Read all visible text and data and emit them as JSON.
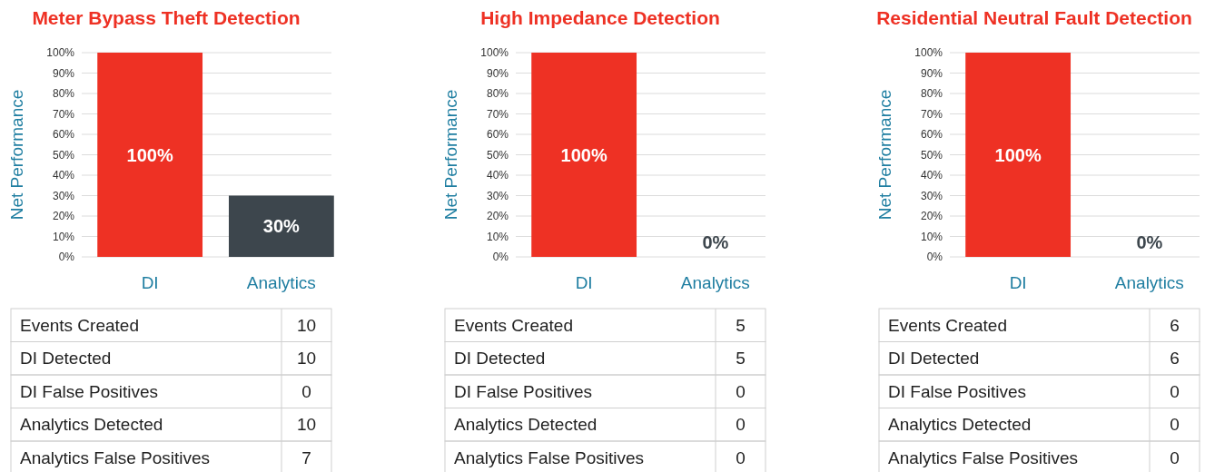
{
  "chart_data": [
    {
      "type": "bar",
      "title": "Meter Bypass Theft Detection",
      "ylabel": "Net Performance",
      "categories": [
        "DI",
        "Analytics"
      ],
      "values": [
        100,
        30
      ],
      "colors": [
        "#ee3124",
        "#3d464d"
      ],
      "value_labels": [
        "100%",
        "30%"
      ],
      "ylim": [
        0,
        100
      ],
      "yticks": [
        {
          "value": 0,
          "label": "0%"
        },
        {
          "value": 10,
          "label": "10%"
        },
        {
          "value": 20,
          "label": "20%"
        },
        {
          "value": 30,
          "label": "30%"
        },
        {
          "value": 40,
          "label": "40%"
        },
        {
          "value": 50,
          "label": "50%"
        },
        {
          "value": 60,
          "label": "60%"
        },
        {
          "value": 70,
          "label": "70%"
        },
        {
          "value": 80,
          "label": "80%"
        },
        {
          "value": 90,
          "label": "90%"
        },
        {
          "value": 100,
          "label": "100%"
        }
      ],
      "grid": "y",
      "annotations": [
        "Events Created",
        "10",
        "DI Detected",
        "10",
        "DI False Positives",
        "0",
        "Analytics Detected",
        "10",
        "Analytics False Positives",
        "7"
      ]
    },
    {
      "type": "bar",
      "title": "High Impedance Detection",
      "ylabel": "Net Performance",
      "categories": [
        "DI",
        "Analytics"
      ],
      "values": [
        100,
        0
      ],
      "colors": [
        "#ee3124",
        "#3d464d"
      ],
      "value_labels": [
        "100%",
        "0%"
      ],
      "ylim": [
        0,
        100
      ],
      "yticks": [
        {
          "value": 0,
          "label": "0%"
        },
        {
          "value": 10,
          "label": "10%"
        },
        {
          "value": 20,
          "label": "20%"
        },
        {
          "value": 30,
          "label": "30%"
        },
        {
          "value": 40,
          "label": "40%"
        },
        {
          "value": 50,
          "label": "50%"
        },
        {
          "value": 60,
          "label": "60%"
        },
        {
          "value": 70,
          "label": "70%"
        },
        {
          "value": 80,
          "label": "80%"
        },
        {
          "value": 90,
          "label": "90%"
        },
        {
          "value": 100,
          "label": "100%"
        }
      ],
      "grid": "y",
      "annotations": [
        "Events Created",
        "5",
        "DI Detected",
        "5",
        "DI False Positives",
        "0",
        "Analytics Detected",
        "0",
        "Analytics False Positives",
        "0"
      ]
    },
    {
      "type": "bar",
      "title": "Residential Neutral Fault Detection",
      "ylabel": "Net Performance",
      "categories": [
        "DI",
        "Analytics"
      ],
      "values": [
        100,
        0
      ],
      "colors": [
        "#ee3124",
        "#3d464d"
      ],
      "value_labels": [
        "100%",
        "0%"
      ],
      "ylim": [
        0,
        100
      ],
      "yticks": [
        {
          "value": 0,
          "label": "0%"
        },
        {
          "value": 10,
          "label": "10%"
        },
        {
          "value": 20,
          "label": "20%"
        },
        {
          "value": 30,
          "label": "30%"
        },
        {
          "value": 40,
          "label": "40%"
        },
        {
          "value": 50,
          "label": "50%"
        },
        {
          "value": 60,
          "label": "60%"
        },
        {
          "value": 70,
          "label": "70%"
        },
        {
          "value": 80,
          "label": "80%"
        },
        {
          "value": 90,
          "label": "90%"
        },
        {
          "value": 100,
          "label": "100%"
        }
      ],
      "grid": "y",
      "annotations": [
        "Events Created",
        "6",
        "DI Detected",
        "6",
        "DI False Positives",
        "0",
        "Analytics Detected",
        "0",
        "Analytics False Positives",
        "0"
      ]
    }
  ]
}
